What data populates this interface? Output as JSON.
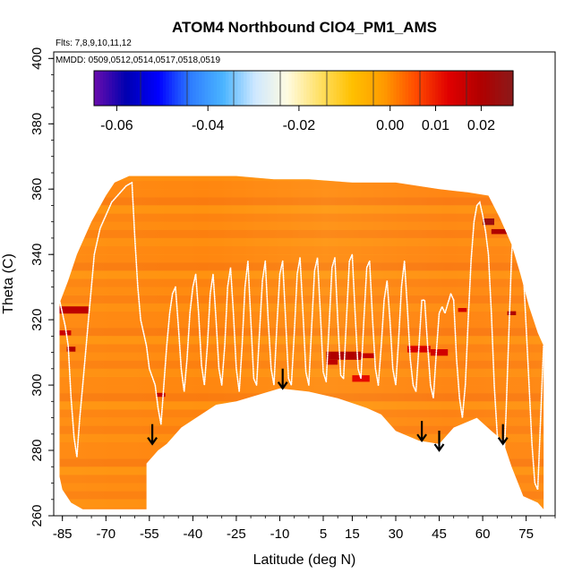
{
  "chart_data": {
    "type": "heatmap",
    "title": "ATOM4 Northbound ClO4_PM1_AMS",
    "flights_text": "Flts: 7,8,9,10,11,12",
    "dates_text": "MMDD: 0509,0512,0514,0517,0518,0519",
    "xlabel": "Latitude (deg N)",
    "ylabel": "Theta (C)",
    "xlim": [
      -88,
      85
    ],
    "ylim": [
      260,
      402
    ],
    "x_ticks": [
      -85,
      -70,
      -55,
      -40,
      -25,
      -10,
      5,
      15,
      30,
      45,
      60,
      75
    ],
    "x_tick_labels": [
      "-85",
      "-70",
      "-55",
      "-40",
      "-25",
      "-10",
      "5",
      "15",
      "30",
      "45",
      "60",
      "75"
    ],
    "y_ticks": [
      260,
      280,
      300,
      320,
      340,
      360,
      380,
      400
    ],
    "y_tick_labels": [
      "260",
      "280",
      "300",
      "320",
      "340",
      "360",
      "380",
      "400"
    ],
    "colorbar": {
      "range": [
        -0.065,
        0.027
      ],
      "ticks": [
        -0.06,
        -0.04,
        -0.02,
        0.0,
        0.01,
        0.02
      ],
      "tick_labels": [
        "-0.06",
        "-0.04",
        "-0.02",
        "0.00",
        "0.01",
        "0.02"
      ],
      "colors": [
        "#6a0dad",
        "#0000b0",
        "#0000ff",
        "#2e7dff",
        "#4ab4ff",
        "#cfe8ff",
        "#fffbe0",
        "#ffe066",
        "#ffc000",
        "#ff9a00",
        "#ff4a00",
        "#e00000",
        "#b00000",
        "#8b1a1a"
      ]
    },
    "field_top": [
      [
        -86,
        325
      ],
      [
        -83,
        332
      ],
      [
        -80,
        340
      ],
      [
        -75,
        350
      ],
      [
        -70,
        358
      ],
      [
        -67,
        362
      ],
      [
        -62,
        364
      ],
      [
        -57,
        364
      ],
      [
        -40,
        364
      ],
      [
        -25,
        364
      ],
      [
        -12,
        363
      ],
      [
        0,
        363
      ],
      [
        15,
        362
      ],
      [
        30,
        362
      ],
      [
        45,
        360
      ],
      [
        55,
        359
      ],
      [
        62,
        358
      ],
      [
        66,
        351
      ],
      [
        70,
        343
      ],
      [
        73,
        334
      ],
      [
        76,
        324
      ],
      [
        79,
        316
      ],
      [
        81,
        312
      ]
    ],
    "field_bottom": [
      [
        81,
        262
      ],
      [
        79,
        264
      ],
      [
        74,
        266
      ],
      [
        70,
        275
      ],
      [
        67,
        283
      ],
      [
        63,
        286
      ],
      [
        58,
        290
      ],
      [
        50,
        287
      ],
      [
        45,
        282
      ],
      [
        38,
        283
      ],
      [
        30,
        286
      ],
      [
        25,
        291
      ],
      [
        20,
        293
      ],
      [
        10,
        296
      ],
      [
        0,
        298
      ],
      [
        -10,
        299
      ],
      [
        -25,
        295
      ],
      [
        -32,
        294
      ],
      [
        -44,
        287
      ],
      [
        -49,
        282
      ],
      [
        -52,
        280
      ],
      [
        -54,
        278
      ],
      [
        -56,
        276
      ],
      [
        -56,
        262
      ],
      [
        -78,
        262
      ],
      [
        -82,
        264
      ],
      [
        -85,
        268
      ],
      [
        -86,
        272
      ]
    ],
    "hotspots": [
      {
        "lat": -83,
        "theta": 323,
        "w": 14,
        "h": 2.2,
        "value": 0.018
      },
      {
        "lat": -84,
        "theta": 316,
        "w": 4,
        "h": 1.5,
        "value": 0.016
      },
      {
        "lat": -82,
        "theta": 311,
        "w": 3,
        "h": 1.5,
        "value": 0.02
      },
      {
        "lat": 12,
        "theta": 309,
        "w": 12,
        "h": 2.5,
        "value": 0.02
      },
      {
        "lat": 20,
        "theta": 309,
        "w": 5,
        "h": 1.5,
        "value": 0.017
      },
      {
        "lat": 8,
        "theta": 307,
        "w": 4,
        "h": 1.5,
        "value": 0.018
      },
      {
        "lat": 38,
        "theta": 311,
        "w": 8,
        "h": 2,
        "value": 0.014
      },
      {
        "lat": 45,
        "theta": 310,
        "w": 6,
        "h": 2,
        "value": 0.015
      },
      {
        "lat": 62,
        "theta": 350,
        "w": 4,
        "h": 2,
        "value": 0.024
      },
      {
        "lat": 66,
        "theta": 347,
        "w": 6,
        "h": 1.5,
        "value": 0.02
      },
      {
        "lat": 70,
        "theta": 322,
        "w": 3,
        "h": 1.2,
        "value": 0.02
      },
      {
        "lat": 53,
        "theta": 323,
        "w": 3,
        "h": 1.2,
        "value": 0.015
      },
      {
        "lat": -51,
        "theta": 297,
        "w": 3,
        "h": 1.2,
        "value": 0.017
      },
      {
        "lat": 18,
        "theta": 302,
        "w": 6,
        "h": 2,
        "value": 0.012
      }
    ],
    "flight_tracks": [
      [
        [
          -86,
          326
        ],
        [
          -84,
          318
        ],
        [
          -83,
          312
        ],
        [
          -82,
          296
        ],
        [
          -81,
          284
        ],
        [
          -80,
          278
        ],
        [
          -79,
          290
        ],
        [
          -78,
          300
        ],
        [
          -77,
          310
        ],
        [
          -76,
          320
        ],
        [
          -75,
          330
        ],
        [
          -74,
          340
        ],
        [
          -72,
          348
        ],
        [
          -70,
          352
        ],
        [
          -68,
          356
        ],
        [
          -66,
          358
        ],
        [
          -63,
          361
        ],
        [
          -61,
          362
        ]
      ],
      [
        [
          -61,
          362
        ],
        [
          -60,
          345
        ],
        [
          -59,
          330
        ],
        [
          -58,
          320
        ],
        [
          -56,
          312
        ],
        [
          -55,
          305
        ],
        [
          -53,
          300
        ],
        [
          -52,
          293
        ],
        [
          -51,
          288
        ],
        [
          -50,
          300
        ],
        [
          -49,
          312
        ],
        [
          -48,
          322
        ],
        [
          -47,
          328
        ],
        [
          -46,
          330
        ]
      ],
      [
        [
          -46,
          330
        ],
        [
          -45,
          318
        ],
        [
          -44,
          305
        ],
        [
          -43,
          298
        ],
        [
          -42,
          308
        ],
        [
          -41,
          322
        ],
        [
          -40,
          330
        ],
        [
          -39,
          334
        ],
        [
          -38,
          322
        ],
        [
          -37,
          306
        ],
        [
          -36,
          300
        ],
        [
          -35,
          312
        ],
        [
          -34,
          328
        ],
        [
          -33,
          334
        ],
        [
          -32,
          320
        ],
        [
          -31,
          305
        ],
        [
          -30,
          300
        ],
        [
          -29,
          312
        ],
        [
          -28,
          330
        ],
        [
          -27,
          336
        ],
        [
          -26,
          322
        ],
        [
          -25,
          305
        ],
        [
          -24,
          298
        ],
        [
          -23,
          312
        ],
        [
          -22,
          330
        ],
        [
          -21,
          338
        ],
        [
          -20,
          320
        ],
        [
          -19,
          302
        ],
        [
          -18,
          300
        ],
        [
          -17,
          316
        ],
        [
          -16,
          332
        ],
        [
          -15,
          338
        ],
        [
          -14,
          320
        ],
        [
          -13,
          305
        ],
        [
          -12,
          300
        ],
        [
          -11,
          318
        ],
        [
          -10,
          334
        ],
        [
          -9,
          338
        ]
      ],
      [
        [
          -9,
          338
        ],
        [
          -8,
          320
        ],
        [
          -7,
          302
        ],
        [
          -6,
          300
        ],
        [
          -5,
          316
        ],
        [
          -4,
          334
        ],
        [
          -3,
          339
        ],
        [
          -2,
          322
        ],
        [
          -1,
          304
        ],
        [
          0,
          300
        ],
        [
          1,
          318
        ],
        [
          2,
          335
        ],
        [
          3,
          339
        ],
        [
          4,
          322
        ],
        [
          5,
          304
        ],
        [
          6,
          301
        ],
        [
          7,
          318
        ],
        [
          8,
          336
        ],
        [
          9,
          339
        ],
        [
          10,
          320
        ],
        [
          11,
          303
        ],
        [
          12,
          302
        ],
        [
          13,
          320
        ],
        [
          14,
          338
        ],
        [
          15,
          340
        ],
        [
          16,
          322
        ],
        [
          17,
          305
        ],
        [
          18,
          302
        ],
        [
          19,
          320
        ],
        [
          20,
          336
        ],
        [
          21,
          338
        ],
        [
          22,
          320
        ],
        [
          23,
          305
        ],
        [
          24,
          300
        ]
      ],
      [
        [
          24,
          300
        ],
        [
          25,
          312
        ],
        [
          26,
          326
        ],
        [
          27,
          332
        ],
        [
          28,
          320
        ],
        [
          29,
          305
        ],
        [
          30,
          300
        ],
        [
          31,
          314
        ],
        [
          32,
          330
        ],
        [
          33,
          338
        ],
        [
          34,
          324
        ],
        [
          35,
          308
        ],
        [
          36,
          300
        ],
        [
          37,
          298
        ],
        [
          38,
          312
        ],
        [
          39,
          326
        ],
        [
          40,
          326
        ],
        [
          41,
          312
        ],
        [
          42,
          300
        ],
        [
          43,
          296
        ],
        [
          44,
          310
        ],
        [
          45,
          322
        ],
        [
          46,
          324
        ],
        [
          47,
          322
        ],
        [
          48,
          325
        ],
        [
          49,
          328
        ],
        [
          50,
          326
        ]
      ],
      [
        [
          50,
          326
        ],
        [
          51,
          308
        ],
        [
          52,
          296
        ],
        [
          53,
          290
        ],
        [
          54,
          300
        ],
        [
          55,
          320
        ],
        [
          56,
          338
        ],
        [
          57,
          350
        ],
        [
          58,
          355
        ],
        [
          59,
          356
        ],
        [
          60,
          352
        ],
        [
          61,
          347
        ],
        [
          62,
          340
        ],
        [
          63,
          322
        ],
        [
          64,
          300
        ],
        [
          65,
          285
        ],
        [
          66,
          278
        ],
        [
          67,
          270
        ],
        [
          68,
          290
        ],
        [
          69,
          315
        ],
        [
          70,
          340
        ],
        [
          71,
          352
        ],
        [
          72,
          354
        ],
        [
          73,
          350
        ],
        [
          74,
          335
        ],
        [
          75,
          318
        ],
        [
          76,
          300
        ],
        [
          77,
          282
        ],
        [
          78,
          270
        ],
        [
          79,
          268
        ],
        [
          80,
          290
        ],
        [
          81,
          312
        ]
      ]
    ],
    "arrows": [
      {
        "lat": -54,
        "theta": 282
      },
      {
        "lat": -9,
        "theta": 299
      },
      {
        "lat": 39,
        "theta": 283
      },
      {
        "lat": 45,
        "theta": 280
      },
      {
        "lat": 67,
        "theta": 282
      }
    ]
  }
}
